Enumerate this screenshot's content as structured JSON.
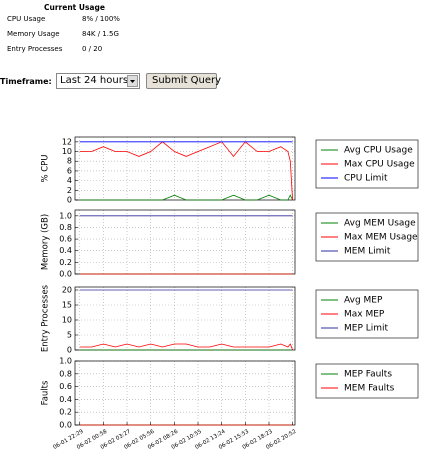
{
  "current_usage": {
    "title": "Current Usage",
    "rows": [
      [
        "CPU Usage",
        "8% / 100%"
      ],
      [
        "Memory Usage",
        "84K / 1.5G"
      ],
      [
        "Entry Processes",
        "0 / 20"
      ]
    ]
  },
  "form": {
    "label": "Timeframe:",
    "select": "Last 24 hours",
    "button": "Submit Query"
  },
  "chart_data": [
    {
      "type": "line",
      "ylabel": "% CPU",
      "xlim": [
        -0.2,
        9.1
      ],
      "ylim": [
        0,
        13
      ],
      "yticks": [
        0,
        2,
        4,
        6,
        8,
        10,
        12
      ],
      "grid": true,
      "legend": "right",
      "x": [
        0,
        0.5,
        1,
        1.5,
        2,
        2.5,
        3,
        3.5,
        4,
        4.5,
        5,
        5.5,
        6,
        6.5,
        7,
        7.5,
        8,
        8.5,
        8.8,
        8.9,
        9
      ],
      "series": [
        {
          "name": "Avg CPU Usage",
          "color": "#008000",
          "values": [
            0,
            0,
            0,
            0,
            0,
            0,
            0,
            0,
            1,
            0,
            0,
            0,
            0,
            1,
            0,
            0,
            1,
            0,
            0,
            1,
            0
          ]
        },
        {
          "name": "Max CPU Usage",
          "color": "#ff0000",
          "values": [
            10,
            10,
            11,
            10,
            10,
            9,
            10,
            12,
            10,
            9,
            10,
            11,
            12,
            9,
            12,
            10,
            10,
            11,
            10,
            8,
            0
          ]
        },
        {
          "name": "CPU Limit",
          "color": "#0000ff",
          "values": [
            12,
            12,
            12,
            12,
            12,
            12,
            12,
            12,
            12,
            12,
            12,
            12,
            12,
            12,
            12,
            12,
            12,
            12,
            12,
            12,
            12
          ]
        }
      ]
    },
    {
      "type": "line",
      "ylabel": "Memory (GB)",
      "xlim": [
        -0.2,
        9.1
      ],
      "ylim": [
        0,
        1.1
      ],
      "yticks": [
        {
          "value": 0,
          "label": "0.0"
        },
        0.2,
        0.4,
        0.6,
        0.8,
        {
          "value": 1,
          "label": "1.0"
        }
      ],
      "grid": true,
      "legend": "right",
      "x": [
        0,
        9
      ],
      "series": [
        {
          "name": "Avg MEM Usage",
          "color": "#008000",
          "values": [
            0,
            0
          ]
        },
        {
          "name": "Max MEM Usage",
          "color": "#ff0000",
          "values": [
            0,
            0
          ]
        },
        {
          "name": "MEM Limit",
          "color": "#2f2f9f",
          "values": [
            1,
            1
          ]
        }
      ]
    },
    {
      "type": "line",
      "ylabel": "Entry Processes",
      "xlim": [
        -0.2,
        9.1
      ],
      "ylim": [
        0,
        21
      ],
      "yticks": [
        0,
        5,
        10,
        15,
        20
      ],
      "grid": true,
      "legend": "right",
      "x": [
        0,
        0.5,
        1,
        1.5,
        2,
        2.5,
        3,
        3.5,
        4,
        4.5,
        5,
        5.5,
        6,
        6.5,
        7,
        7.5,
        8,
        8.5,
        8.8,
        8.9,
        9
      ],
      "series": [
        {
          "name": "Avg MEP",
          "color": "#008000",
          "values": [
            0,
            0,
            0,
            0,
            0,
            0,
            0,
            0,
            0,
            0,
            0,
            0,
            0,
            0,
            0,
            0,
            0,
            0,
            0,
            0,
            0
          ]
        },
        {
          "name": "Max MEP",
          "color": "#ff0000",
          "values": [
            1,
            1,
            2,
            1,
            2,
            1,
            2,
            1,
            2,
            2,
            1,
            1,
            2,
            1,
            1,
            1,
            1,
            2,
            1,
            2,
            0
          ]
        },
        {
          "name": "MEP Limit",
          "color": "#2f2f9f",
          "values": [
            20,
            20,
            20,
            20,
            20,
            20,
            20,
            20,
            20,
            20,
            20,
            20,
            20,
            20,
            20,
            20,
            20,
            20,
            20,
            20,
            20
          ]
        }
      ]
    },
    {
      "type": "line",
      "ylabel": "Faults",
      "xlim": [
        -0.2,
        9.1
      ],
      "ylim": [
        0,
        1
      ],
      "yticks": [
        {
          "value": 0,
          "label": "0.0"
        },
        0.2,
        0.4,
        0.6,
        0.8,
        {
          "value": 1,
          "label": "1.0"
        }
      ],
      "grid": true,
      "legend": "right",
      "xticks": [
        {
          "value": 0,
          "label": "06-01 22:29"
        },
        {
          "value": 1,
          "label": "06-02 00:58"
        },
        {
          "value": 2,
          "label": "06-02 03:27"
        },
        {
          "value": 3,
          "label": "06-02 05:56"
        },
        {
          "value": 4,
          "label": "06-02 08:26"
        },
        {
          "value": 5,
          "label": "06-02 10:55"
        },
        {
          "value": 6,
          "label": "06-02 13:24"
        },
        {
          "value": 7,
          "label": "06-02 15:53"
        },
        {
          "value": 8,
          "label": "06-02 18:23"
        },
        {
          "value": 9,
          "label": "06-02 20:52"
        }
      ],
      "x": [
        0,
        9
      ],
      "series": [
        {
          "name": "MEP Faults",
          "color": "#008000",
          "values": [
            0,
            0
          ]
        },
        {
          "name": "MEM Faults",
          "color": "#ff0000",
          "values": [
            0,
            0
          ]
        }
      ]
    }
  ]
}
